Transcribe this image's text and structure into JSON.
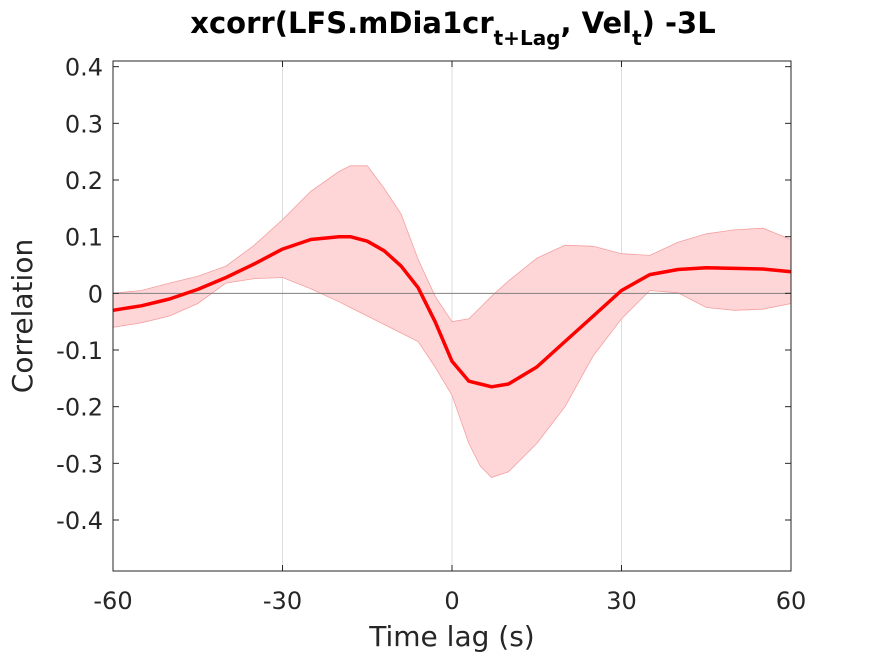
{
  "chart_data": {
    "type": "line",
    "title_parts": {
      "main": "xcorr(LFS.mDia1cr",
      "sub1": "t+Lag",
      "mid": ", Vel",
      "sub2": "t",
      "end": ") -3L"
    },
    "xlabel": "Time lag (s)",
    "ylabel": "Correlation",
    "xlim": [
      -60,
      60
    ],
    "ylim": [
      -0.49,
      0.41
    ],
    "xticks": [
      -60,
      -30,
      0,
      30,
      60
    ],
    "xtick_labels": [
      "-60",
      "-30",
      "0",
      "30",
      "60"
    ],
    "yticks": [
      0.4,
      0.3,
      0.2,
      0.1,
      0,
      -0.1,
      -0.2,
      -0.3,
      -0.4
    ],
    "ytick_labels": [
      "0.4",
      "0.3",
      "0.2",
      "0.1",
      "0",
      "-0.1",
      "-0.2",
      "-0.3",
      "-0.4"
    ],
    "grid": "x-only",
    "zero_line": true,
    "colors": {
      "line": "#ff0000",
      "band": "#ffd6d8",
      "band_edge": "#f4a0a0",
      "grid": "#dcdcdc",
      "axis": "#262626",
      "zero": "#808080"
    },
    "series": [
      {
        "x": [
          -60,
          -55,
          -50,
          -45,
          -40,
          -35,
          -30,
          -25,
          -20,
          -18,
          -15,
          -12,
          -9,
          -6,
          -3,
          0,
          3,
          5,
          7,
          10,
          15,
          20,
          25,
          30,
          35,
          40,
          45,
          50,
          55,
          60
        ],
        "mean": [
          -0.03,
          -0.022,
          -0.01,
          0.007,
          0.028,
          0.052,
          0.078,
          0.095,
          0.1,
          0.1,
          0.092,
          0.075,
          0.048,
          0.01,
          -0.05,
          -0.12,
          -0.155,
          -0.16,
          -0.165,
          -0.16,
          -0.13,
          -0.085,
          -0.04,
          0.005,
          0.033,
          0.042,
          0.045,
          0.044,
          0.043,
          0.038
        ],
        "upper": [
          0.0,
          0.005,
          0.018,
          0.03,
          0.048,
          0.085,
          0.13,
          0.18,
          0.215,
          0.225,
          0.225,
          0.185,
          0.14,
          0.06,
          -0.005,
          -0.05,
          -0.045,
          -0.025,
          -0.005,
          0.022,
          0.062,
          0.085,
          0.083,
          0.07,
          0.067,
          0.09,
          0.105,
          0.112,
          0.115,
          0.095
        ],
        "lower": [
          -0.06,
          -0.052,
          -0.04,
          -0.018,
          0.018,
          0.026,
          0.028,
          0.008,
          -0.015,
          -0.025,
          -0.04,
          -0.055,
          -0.07,
          -0.085,
          -0.13,
          -0.18,
          -0.265,
          -0.305,
          -0.325,
          -0.315,
          -0.265,
          -0.2,
          -0.11,
          -0.045,
          0.005,
          0.001,
          -0.025,
          -0.03,
          -0.028,
          -0.018
        ]
      }
    ]
  }
}
